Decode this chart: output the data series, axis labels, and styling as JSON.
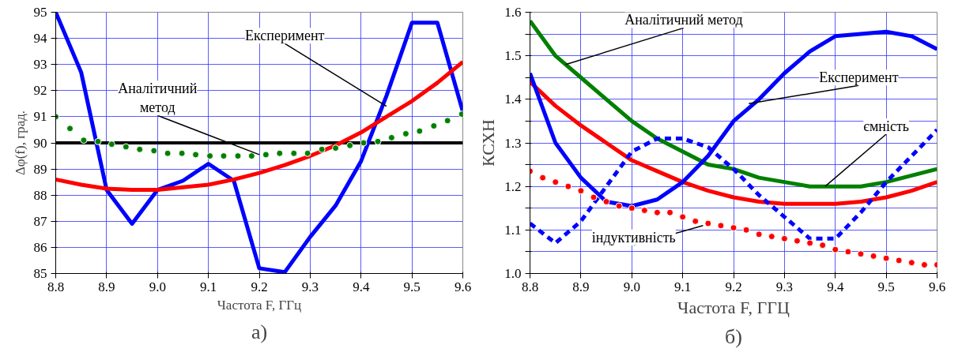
{
  "chart_data": [
    {
      "type": "line",
      "xlabel": "Частота F, ГГц",
      "ylabel": "Δφ(f), град.",
      "xlim": [
        8.8,
        9.6
      ],
      "ylim": [
        85,
        95
      ],
      "xticks": [
        {
          "value": 8.8,
          "label": "8.8"
        },
        {
          "value": 8.9,
          "label": "8.9"
        },
        {
          "value": 9.0,
          "label": "9.0"
        },
        {
          "value": 9.1,
          "label": "9.1"
        },
        {
          "value": 9.2,
          "label": "9.2"
        },
        {
          "value": 9.3,
          "label": "9.3"
        },
        {
          "value": 9.4,
          "label": "9.4"
        },
        {
          "value": 9.5,
          "label": "9.5"
        },
        {
          "value": 9.6,
          "label": "9.6"
        }
      ],
      "yticks": [
        85,
        86,
        87,
        88,
        89,
        90,
        91,
        92,
        93,
        94,
        95
      ],
      "grid": true,
      "series": [
        {
          "color": "#0000ff",
          "x": [
            8.8,
            8.85,
            8.9,
            8.95,
            9.0,
            9.05,
            9.1,
            9.15,
            9.2,
            9.25,
            9.3,
            9.35,
            9.4,
            9.45,
            9.5,
            9.55,
            9.6
          ],
          "values": [
            95,
            92.7,
            88.2,
            86.9,
            88.2,
            88.55,
            89.2,
            88.55,
            85.2,
            85.05,
            86.4,
            87.6,
            89.3,
            91.8,
            94.6,
            94.6,
            91.2
          ]
        },
        {
          "color": "#ff0000",
          "x": [
            8.8,
            8.85,
            8.9,
            8.95,
            9.0,
            9.05,
            9.1,
            9.15,
            9.2,
            9.25,
            9.3,
            9.35,
            9.4,
            9.45,
            9.5,
            9.55,
            9.6
          ],
          "values": [
            88.6,
            88.4,
            88.25,
            88.2,
            88.2,
            88.3,
            88.4,
            88.6,
            88.85,
            89.15,
            89.5,
            89.9,
            90.4,
            91.0,
            91.6,
            92.3,
            93.1
          ]
        },
        {
          "type": "scatter",
          "marker": "circle",
          "color": "#008000",
          "x": [
            8.8,
            8.828,
            8.855,
            8.883,
            8.91,
            8.938,
            8.965,
            8.993,
            9.02,
            9.048,
            9.075,
            9.103,
            9.13,
            9.158,
            9.185,
            9.213,
            9.24,
            9.268,
            9.295,
            9.323,
            9.35,
            9.378,
            9.405,
            9.433,
            9.46,
            9.488,
            9.515,
            9.543,
            9.57,
            9.598
          ],
          "values": [
            91.0,
            90.55,
            90.1,
            90.05,
            89.95,
            89.85,
            89.75,
            89.7,
            89.6,
            89.6,
            89.55,
            89.5,
            89.5,
            89.5,
            89.5,
            89.55,
            89.6,
            89.6,
            89.6,
            89.75,
            89.8,
            89.9,
            90.0,
            90.05,
            90.2,
            90.35,
            90.45,
            90.65,
            90.85,
            91.1
          ]
        }
      ],
      "ref_lines": [
        {
          "axis": "y",
          "value": 90,
          "color": "#000000"
        }
      ],
      "annotations": [
        {
          "text": "Експеримент",
          "x": 9.45,
          "y": 91.4
        },
        {
          "text": "Аналітичний\nметод",
          "x": 9.2,
          "y": 89.55
        },
        "а)"
      ]
    },
    {
      "type": "line",
      "xlabel": "Частота F, ГГЦ",
      "ylabel": "КСХН",
      "xlim": [
        8.8,
        9.6
      ],
      "ylim": [
        1.0,
        1.6
      ],
      "xticks": [
        {
          "value": 8.8,
          "label": "8.8"
        },
        {
          "value": 8.9,
          "label": "8.9"
        },
        {
          "value": 9.0,
          "label": "9.0"
        },
        {
          "value": 9.1,
          "label": "9.1"
        },
        {
          "value": 9.2,
          "label": "9.2"
        },
        {
          "value": 9.3,
          "label": "9.3"
        },
        {
          "value": 9.4,
          "label": "9.4"
        },
        {
          "value": 9.5,
          "label": "9.5"
        },
        {
          "value": 9.6,
          "label": "9.6"
        }
      ],
      "yticks": [
        {
          "value": 1.0,
          "label": "1.0"
        },
        {
          "value": 1.05,
          "label": null
        },
        {
          "value": 1.1,
          "label": "1.1"
        },
        {
          "value": 1.15,
          "label": null
        },
        {
          "value": 1.2,
          "label": "1.2"
        },
        {
          "value": 1.25,
          "label": null
        },
        {
          "value": 1.3,
          "label": "1.3"
        },
        {
          "value": 1.35,
          "label": null
        },
        {
          "value": 1.4,
          "label": "1.4"
        },
        {
          "value": 1.45,
          "label": null
        },
        {
          "value": 1.5,
          "label": "1.5"
        },
        {
          "value": 1.55,
          "label": null
        },
        {
          "value": 1.6,
          "label": "1.6"
        }
      ],
      "grid": true,
      "series": [
        {
          "color": "#008000",
          "x": [
            8.8,
            8.85,
            8.9,
            8.95,
            9.0,
            9.05,
            9.1,
            9.15,
            9.2,
            9.25,
            9.3,
            9.35,
            9.4,
            9.45,
            9.5,
            9.55,
            9.6
          ],
          "values": [
            1.58,
            1.5,
            1.45,
            1.4,
            1.35,
            1.31,
            1.28,
            1.25,
            1.24,
            1.22,
            1.21,
            1.2,
            1.2,
            1.2,
            1.21,
            1.225,
            1.24
          ]
        },
        {
          "color": "#ff0000",
          "x": [
            8.8,
            8.85,
            8.9,
            8.95,
            9.0,
            9.05,
            9.1,
            9.15,
            9.2,
            9.25,
            9.3,
            9.35,
            9.4,
            9.45,
            9.5,
            9.55,
            9.6
          ],
          "values": [
            1.44,
            1.385,
            1.34,
            1.3,
            1.26,
            1.235,
            1.21,
            1.19,
            1.175,
            1.165,
            1.16,
            1.16,
            1.16,
            1.165,
            1.175,
            1.19,
            1.21
          ]
        },
        {
          "color": "#0000ff",
          "x": [
            8.8,
            8.85,
            8.9,
            8.95,
            9.0,
            9.05,
            9.1,
            9.15,
            9.2,
            9.25,
            9.3,
            9.35,
            9.4,
            9.45,
            9.5,
            9.55,
            9.6
          ],
          "values": [
            1.46,
            1.3,
            1.22,
            1.165,
            1.155,
            1.17,
            1.21,
            1.27,
            1.35,
            1.4,
            1.46,
            1.51,
            1.545,
            1.55,
            1.555,
            1.545,
            1.515
          ]
        },
        {
          "color": "#0000ff",
          "line_style": "dashed",
          "x": [
            8.8,
            8.85,
            8.9,
            8.95,
            9.0,
            9.05,
            9.1,
            9.15,
            9.2,
            9.25,
            9.3,
            9.35,
            9.4,
            9.45,
            9.5,
            9.55,
            9.6
          ],
          "values": [
            1.115,
            1.07,
            1.12,
            1.2,
            1.28,
            1.31,
            1.31,
            1.29,
            1.24,
            1.18,
            1.13,
            1.08,
            1.08,
            1.14,
            1.21,
            1.27,
            1.33
          ]
        },
        {
          "type": "scatter",
          "marker": "circle",
          "color": "#ff0000",
          "x": [
            8.8,
            8.825,
            8.85,
            8.875,
            8.9,
            8.925,
            8.95,
            8.975,
            9.0,
            9.025,
            9.05,
            9.075,
            9.1,
            9.125,
            9.15,
            9.175,
            9.2,
            9.225,
            9.25,
            9.275,
            9.3,
            9.325,
            9.35,
            9.375,
            9.4,
            9.425,
            9.45,
            9.475,
            9.5,
            9.525,
            9.55,
            9.575,
            9.6
          ],
          "values": [
            1.235,
            1.22,
            1.21,
            1.2,
            1.19,
            1.175,
            1.165,
            1.155,
            1.15,
            1.145,
            1.14,
            1.14,
            1.13,
            1.12,
            1.115,
            1.11,
            1.105,
            1.1,
            1.09,
            1.085,
            1.08,
            1.075,
            1.07,
            1.065,
            1.055,
            1.05,
            1.045,
            1.04,
            1.035,
            1.03,
            1.025,
            1.02,
            1.02
          ]
        }
      ],
      "annotations": [
        {
          "text": "Аналітичний метод",
          "x": 8.87,
          "y": 1.48
        },
        {
          "text": "Експеримент",
          "x": 9.23,
          "y": 1.39
        },
        {
          "text": "ємність",
          "x": 9.38,
          "y": 1.2
        },
        {
          "text": "індуктивність",
          "x": 9.14,
          "y": 1.11
        },
        "б)"
      ]
    }
  ]
}
